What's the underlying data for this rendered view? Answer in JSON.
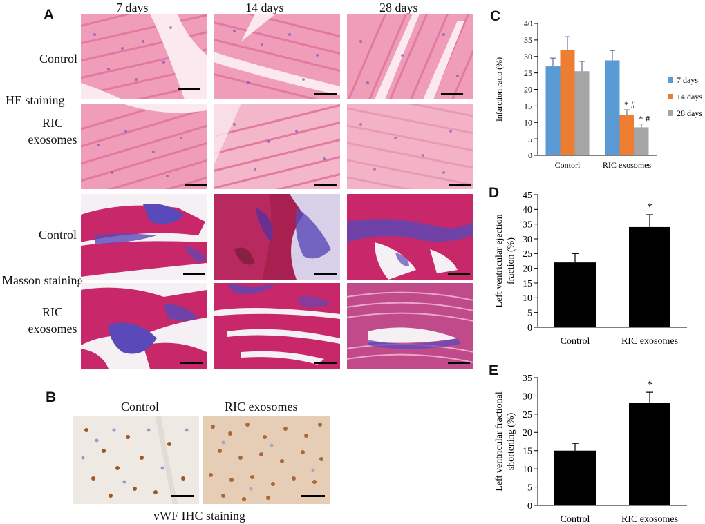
{
  "panels": {
    "A": {
      "letter": "A",
      "columns": [
        "7 days",
        "14 days",
        "28 days"
      ],
      "row_labels": [
        "Control",
        "RIC\nexosomes",
        "Control",
        "RIC\nexosomes"
      ],
      "stains": [
        "HE staining",
        "Masson staining"
      ]
    },
    "B": {
      "letter": "B",
      "columns": [
        "Control",
        "RIC exosomes"
      ],
      "caption": "vWF IHC staining"
    },
    "C": {
      "letter": "C"
    },
    "D": {
      "letter": "D"
    },
    "E": {
      "letter": "E"
    }
  },
  "colors": {
    "he_base": "#ef9db8",
    "he_fiber": "#e27aa0",
    "he_bg": "#fbe9ef",
    "masson_red": "#c8286a",
    "masson_blue": "#5a49b8",
    "masson_bg": "#f4f0f4",
    "ihc_bg": "#efe9e4",
    "ihc_brown": "#a0571f",
    "ihc_blue": "#8f9fc7",
    "series_7": "#5b9bd5",
    "series_14": "#ed7d31",
    "series_28": "#a5a5a5",
    "bar_black": "#000000"
  },
  "chart_data": [
    {
      "id": "C",
      "type": "bar",
      "categories": [
        "Contorl",
        "RIC exosomes"
      ],
      "series": [
        {
          "name": "7 days",
          "values": [
            27,
            28.8
          ],
          "errors": [
            2.5,
            3.0
          ],
          "color": "#5b9bd5",
          "annotations": [
            "",
            ""
          ]
        },
        {
          "name": "14 days",
          "values": [
            32,
            12.2
          ],
          "errors": [
            4.0,
            1.6
          ],
          "color": "#ed7d31",
          "annotations": [
            "",
            "* #"
          ]
        },
        {
          "name": "28 days",
          "values": [
            25.5,
            8.5
          ],
          "errors": [
            3.0,
            1.0
          ],
          "color": "#a5a5a5",
          "annotations": [
            "",
            "* #"
          ]
        }
      ],
      "ylabel": "Infarction ratio (%)",
      "ylim": [
        0,
        40
      ],
      "yticks": [
        0,
        5,
        10,
        15,
        20,
        25,
        30,
        35,
        40
      ],
      "legend": "right"
    },
    {
      "id": "D",
      "type": "bar",
      "categories": [
        "Control",
        "RIC exosomes"
      ],
      "values": [
        22,
        34
      ],
      "errors": [
        3,
        4.2
      ],
      "annotations": [
        "",
        "*"
      ],
      "ylabel": "Left ventricular ejection fraction (%)",
      "ylabel_lines": [
        "Left ventricular ejection",
        "fraction (%)"
      ],
      "ylim": [
        0,
        45
      ],
      "yticks": [
        0,
        5,
        10,
        15,
        20,
        25,
        30,
        35,
        40,
        45
      ]
    },
    {
      "id": "E",
      "type": "bar",
      "categories": [
        "Control",
        "RIC exosomes"
      ],
      "values": [
        15,
        28
      ],
      "errors": [
        2,
        3
      ],
      "annotations": [
        "",
        "*"
      ],
      "ylabel": "Left ventricular fractional shortening (%)",
      "ylabel_lines": [
        "Left ventricular fractional",
        "shortening (%)"
      ],
      "ylim": [
        0,
        35
      ],
      "yticks": [
        0,
        5,
        10,
        15,
        20,
        25,
        30,
        35
      ]
    }
  ]
}
